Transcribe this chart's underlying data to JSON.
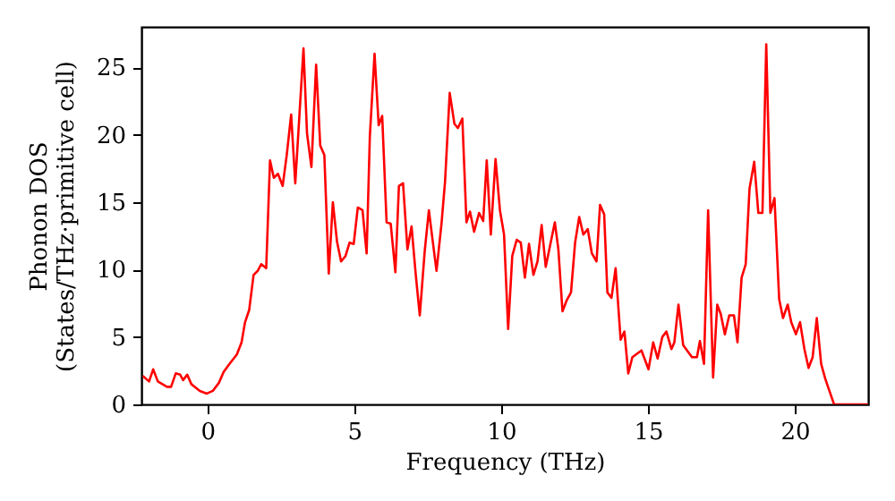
{
  "chart_data": {
    "type": "line",
    "xlabel": "Frequency (THz)",
    "ylabel": "Phonon DOS\n(States/THz·primitive cell)",
    "xlim": [
      -2.25,
      22.5
    ],
    "ylim": [
      0,
      28
    ],
    "xticks": [
      0,
      5,
      10,
      15,
      20
    ],
    "yticks": [
      0,
      5,
      10,
      15,
      20,
      25
    ],
    "grid": false,
    "marker": "none",
    "line_style": "solid",
    "series": [
      {
        "color": "#ff0000",
        "x": [
          -2.2,
          -1.99,
          -1.85,
          -1.69,
          -1.38,
          -1.24,
          -1.08,
          -0.93,
          -0.83,
          -0.69,
          -0.55,
          -0.26,
          -0.02,
          0.18,
          0.39,
          0.55,
          0.75,
          1.0,
          1.16,
          1.28,
          1.42,
          1.57,
          1.71,
          1.83,
          2.0,
          2.13,
          2.26,
          2.4,
          2.56,
          2.7,
          2.85,
          2.99,
          3.27,
          3.39,
          3.54,
          3.7,
          3.84,
          3.98,
          4.13,
          4.27,
          4.41,
          4.55,
          4.7,
          4.84,
          4.98,
          5.12,
          5.28,
          5.42,
          5.53,
          5.69,
          5.83,
          5.95,
          6.1,
          6.24,
          6.4,
          6.52,
          6.66,
          6.81,
          6.95,
          7.09,
          7.23,
          7.4,
          7.54,
          7.66,
          7.8,
          7.97,
          8.09,
          8.25,
          8.41,
          8.53,
          8.68,
          8.82,
          8.94,
          9.08,
          9.25,
          9.39,
          9.51,
          9.65,
          9.81,
          9.96,
          10.1,
          10.24,
          10.38,
          10.53,
          10.67,
          10.81,
          10.95,
          11.1,
          11.24,
          11.38,
          11.52,
          11.66,
          11.83,
          11.95,
          12.09,
          12.23,
          12.38,
          12.52,
          12.66,
          12.8,
          12.95,
          13.09,
          13.25,
          13.37,
          13.51,
          13.62,
          13.76,
          13.9,
          14.07,
          14.2,
          14.33,
          14.47,
          14.78,
          15.02,
          15.18,
          15.33,
          15.49,
          15.63,
          15.8,
          15.9,
          16.04,
          16.2,
          16.5,
          16.67,
          16.77,
          16.91,
          17.05,
          17.22,
          17.36,
          17.48,
          17.62,
          17.77,
          17.93,
          18.05,
          18.19,
          18.33,
          18.46,
          18.62,
          18.76,
          18.9,
          19.03,
          19.17,
          19.31,
          19.47,
          19.6,
          19.76,
          19.88,
          20.04,
          20.18,
          20.33,
          20.47,
          20.61,
          20.75,
          20.9,
          21.04,
          21.18,
          21.34,
          22.5
        ],
        "values": [
          2.1,
          1.7,
          2.6,
          1.7,
          1.3,
          1.3,
          2.3,
          2.2,
          1.8,
          2.2,
          1.5,
          1.0,
          0.8,
          1.0,
          1.6,
          2.4,
          3.0,
          3.7,
          4.6,
          6.1,
          7.0,
          9.6,
          9.9,
          10.4,
          10.1,
          18.1,
          16.8,
          17.1,
          16.2,
          18.5,
          21.5,
          16.4,
          26.4,
          20.1,
          17.6,
          25.2,
          19.2,
          18.5,
          9.7,
          15.0,
          12.1,
          10.6,
          11.0,
          12.0,
          11.9,
          14.6,
          14.4,
          11.2,
          19.9,
          26.0,
          20.7,
          21.4,
          13.5,
          13.4,
          9.8,
          16.2,
          16.4,
          11.5,
          13.2,
          9.7,
          6.6,
          11.4,
          14.4,
          12.3,
          9.9,
          13.4,
          16.5,
          23.1,
          20.8,
          20.5,
          21.2,
          13.5,
          14.3,
          12.8,
          14.2,
          13.6,
          18.1,
          12.6,
          18.2,
          14.4,
          12.6,
          5.6,
          11.0,
          12.2,
          12.0,
          9.4,
          11.9,
          9.6,
          10.6,
          13.3,
          10.2,
          11.7,
          13.5,
          11.5,
          6.9,
          7.7,
          8.3,
          12.0,
          13.9,
          12.6,
          13.0,
          11.2,
          10.6,
          14.8,
          14.1,
          8.3,
          7.9,
          10.1,
          4.8,
          5.4,
          2.3,
          3.5,
          4.0,
          2.6,
          4.6,
          3.4,
          5.0,
          5.4,
          4.1,
          4.6,
          7.4,
          4.4,
          3.5,
          3.5,
          4.7,
          3.0,
          14.4,
          2.0,
          7.4,
          6.7,
          5.2,
          6.6,
          6.6,
          4.6,
          9.4,
          10.4,
          16.0,
          18.0,
          14.2,
          14.2,
          26.7,
          14.2,
          15.3,
          7.8,
          6.4,
          7.4,
          6.1,
          5.2,
          6.1,
          4.1,
          2.7,
          3.5,
          6.4,
          3.0,
          1.9,
          1.0,
          0.0,
          0.0
        ]
      }
    ]
  }
}
